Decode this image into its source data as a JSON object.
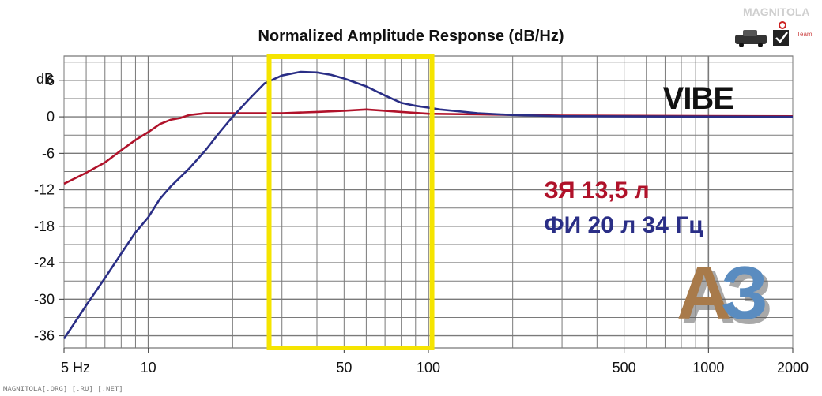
{
  "chart_data": {
    "type": "line",
    "title": "Normalized Amplitude Response (dB/Hz)",
    "ylabel": "dB",
    "xscale": "log",
    "xlim": [
      5,
      2000
    ],
    "ylim": [
      -38,
      10
    ],
    "grid": true,
    "y_ticks": [
      6,
      0,
      -6,
      -12,
      -18,
      -24,
      -30,
      -36
    ],
    "y_tick_labels": [
      "6",
      "0",
      "-6",
      "-12",
      "-18",
      "-24",
      "-30",
      "-36"
    ],
    "x_ticks": [
      5,
      10,
      50,
      100,
      500,
      1000,
      2000
    ],
    "x_tick_labels": [
      "5 Hz",
      "10",
      "50",
      "100",
      "500",
      "1000",
      "2000"
    ],
    "highlight_range": [
      27,
      103
    ],
    "highlight_color": "#f5e400",
    "series": [
      {
        "name": "ЗЯ 13,5 л",
        "color": "#b0122a",
        "points": [
          [
            5,
            -11
          ],
          [
            6,
            -9.2
          ],
          [
            7,
            -7.5
          ],
          [
            8,
            -5.5
          ],
          [
            9,
            -3.8
          ],
          [
            10,
            -2.5
          ],
          [
            11,
            -1.2
          ],
          [
            12,
            -0.5
          ],
          [
            13,
            -0.2
          ],
          [
            14,
            0.3
          ],
          [
            16,
            0.6
          ],
          [
            20,
            0.6
          ],
          [
            30,
            0.6
          ],
          [
            40,
            0.8
          ],
          [
            50,
            1
          ],
          [
            60,
            1.2
          ],
          [
            70,
            1
          ],
          [
            80,
            0.8
          ],
          [
            100,
            0.5
          ],
          [
            150,
            0.4
          ],
          [
            300,
            0.2
          ],
          [
            2000,
            0.1
          ]
        ]
      },
      {
        "name": "ФИ 20 л 34 Гц",
        "color": "#2a2e86",
        "points": [
          [
            5,
            -36.5
          ],
          [
            6,
            -31
          ],
          [
            7,
            -26.5
          ],
          [
            8,
            -22.5
          ],
          [
            9,
            -19
          ],
          [
            10,
            -16.5
          ],
          [
            11,
            -13.5
          ],
          [
            12,
            -11.5
          ],
          [
            14,
            -8.5
          ],
          [
            16,
            -5.5
          ],
          [
            18,
            -2.5
          ],
          [
            20,
            0
          ],
          [
            23,
            3
          ],
          [
            26,
            5.5
          ],
          [
            30,
            6.8
          ],
          [
            35,
            7.4
          ],
          [
            40,
            7.3
          ],
          [
            45,
            6.9
          ],
          [
            50,
            6.3
          ],
          [
            60,
            5
          ],
          [
            70,
            3.5
          ],
          [
            80,
            2.3
          ],
          [
            90,
            1.8
          ],
          [
            100,
            1.5
          ],
          [
            110,
            1.2
          ],
          [
            150,
            0.6
          ],
          [
            200,
            0.3
          ],
          [
            300,
            0.1
          ],
          [
            2000,
            0
          ]
        ]
      }
    ],
    "annotations": [
      "VIBE"
    ],
    "legend_placement": "right-center"
  },
  "watermark_logo": "MAGNITOLA",
  "watermark_sub": "Team",
  "badge_text": "АЗ",
  "footer_text": "MAGNITOLA[.ORG] [.RU] [.NET]",
  "colors": {
    "grid": "#7a7a7a",
    "plot_border": "#555555",
    "az_brown": "#a87a4a",
    "az_blue": "#5a8cc0"
  },
  "icons": [
    "car-icon",
    "checkbox-icon"
  ]
}
